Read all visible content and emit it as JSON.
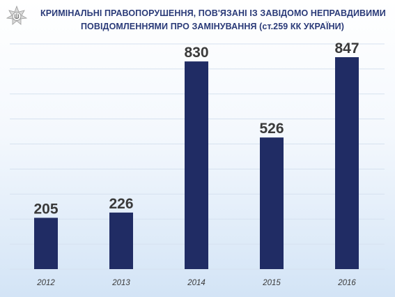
{
  "title": {
    "line1": "КРИМІНАЛЬНІ ПРАВОПОРУШЕННЯ, ПОВ'ЯЗАНІ ІЗ ЗАВІДОМО НЕПРАВДИВИМИ",
    "line2": "ПОВІДОМЛЕННЯМИ ПРО ЗАМІНУВАННЯ  (ст.259 КК УКРАЇНИ)"
  },
  "logo": {
    "icon": "police-star-emblem-icon"
  },
  "colors": {
    "bar": "#202c64",
    "grid": "#d6e1ef",
    "title": "#2a3a78"
  },
  "chart_data": {
    "type": "bar",
    "categories": [
      "2012",
      "2013",
      "2014",
      "2015",
      "2016"
    ],
    "values": [
      205,
      226,
      830,
      526,
      847
    ],
    "ylim": [
      0,
      900
    ],
    "grid": true,
    "data_labels": true
  }
}
